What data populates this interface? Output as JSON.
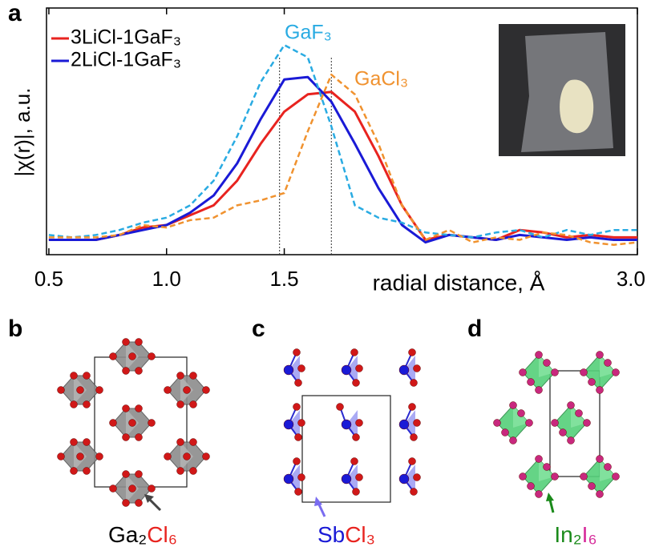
{
  "chart_data": {
    "type": "line",
    "ylabel": "|χ(r)|, a.u.",
    "xlabel": "radial distance, Å",
    "x": [
      0.5,
      0.6,
      0.7,
      0.8,
      0.9,
      1.0,
      1.1,
      1.2,
      1.3,
      1.4,
      1.5,
      1.6,
      1.7,
      1.8,
      1.9,
      2.0,
      2.1,
      2.2,
      2.3,
      2.4,
      2.5,
      2.6,
      2.7,
      2.8,
      2.9,
      3.0
    ],
    "series": [
      {
        "name": "3LiCl-1GaF₃",
        "color": "#e8231f",
        "dash": false,
        "values": [
          0.06,
          0.06,
          0.06,
          0.08,
          0.11,
          0.12,
          0.16,
          0.2,
          0.3,
          0.45,
          0.58,
          0.65,
          0.66,
          0.58,
          0.4,
          0.2,
          0.06,
          0.08,
          0.07,
          0.06,
          0.1,
          0.09,
          0.07,
          0.08,
          0.07,
          0.07
        ]
      },
      {
        "name": "2LiCl-1GaF₃",
        "color": "#1a1ad6",
        "dash": false,
        "values": [
          0.06,
          0.06,
          0.06,
          0.08,
          0.1,
          0.12,
          0.17,
          0.24,
          0.37,
          0.55,
          0.71,
          0.72,
          0.62,
          0.45,
          0.27,
          0.12,
          0.05,
          0.08,
          0.07,
          0.06,
          0.08,
          0.07,
          0.06,
          0.07,
          0.06,
          0.06
        ]
      },
      {
        "name": "GaF₃",
        "color": "#29abe2",
        "dash": true,
        "values": [
          0.08,
          0.07,
          0.08,
          0.1,
          0.13,
          0.15,
          0.2,
          0.3,
          0.48,
          0.7,
          0.85,
          0.8,
          0.52,
          0.2,
          0.15,
          0.13,
          0.09,
          0.08,
          0.07,
          0.09,
          0.1,
          0.07,
          0.1,
          0.08,
          0.1,
          0.1
        ]
      },
      {
        "name": "GaCl₃",
        "color": "#f0922f",
        "dash": true,
        "values": [
          0.07,
          0.07,
          0.07,
          0.08,
          0.12,
          0.11,
          0.14,
          0.15,
          0.2,
          0.22,
          0.25,
          0.5,
          0.73,
          0.65,
          0.45,
          0.2,
          0.06,
          0.1,
          0.05,
          0.07,
          0.06,
          0.09,
          0.08,
          0.05,
          0.04,
          0.05
        ]
      }
    ],
    "ref_lines": [
      1.48,
      1.7
    ],
    "xlim": [
      0.49,
      3.0
    ],
    "ylim": [
      0,
      1
    ],
    "xticks": [
      0.5,
      {
        "value": 1,
        "label": "1.0"
      },
      1.5,
      {
        "value": 3,
        "label": "3.0"
      }
    ]
  },
  "panels": {
    "a": "a",
    "b": "b",
    "c": "c",
    "d": "d"
  },
  "captions": {
    "b": [
      "Ga₂",
      "Cl₆"
    ],
    "c": [
      "Sb",
      "Cl₃"
    ],
    "d": [
      "In₂",
      "I₆"
    ]
  }
}
